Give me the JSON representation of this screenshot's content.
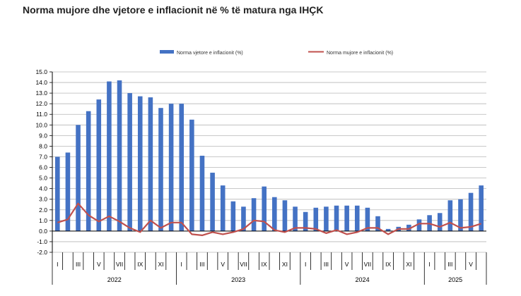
{
  "title": "Norma mujore dhe vjetore e inflacionit në % të matura nga IHÇK",
  "colors": {
    "bar": "#4472C4",
    "line": "#C0504D",
    "grid": "#b7b7b7",
    "axis": "#000000"
  },
  "chart_data": {
    "type": "bar+line",
    "title": "Norma mujore dhe vjetore e inflacionit në % të matura nga IHÇK",
    "ylim": [
      -2.0,
      15.0
    ],
    "yticks": [
      "15.0",
      "14.0",
      "13.0",
      "12.0",
      "11.0",
      "10.0",
      "9.0",
      "8.0",
      "7.0",
      "6.0",
      "5.0",
      "4.0",
      "3.0",
      "2.0",
      "1.0",
      "0.0",
      "-1.0",
      "-2.0"
    ],
    "grid": true,
    "legend_position": "top",
    "month_labels": [
      "I",
      "",
      "III",
      "",
      "V",
      "",
      "VII",
      "",
      "IX",
      "",
      "XI",
      "",
      "I",
      "",
      "III",
      "",
      "V",
      "",
      "VII",
      "",
      "IX",
      "",
      "XI",
      "",
      "I",
      "",
      "III",
      "",
      "V",
      "",
      "VII",
      "",
      "IX",
      "",
      "XI",
      "",
      "I",
      "",
      "III",
      "",
      "V",
      ""
    ],
    "years": [
      {
        "label": "2022",
        "start": 0,
        "count": 12
      },
      {
        "label": "2023",
        "start": 12,
        "count": 12
      },
      {
        "label": "2024",
        "start": 24,
        "count": 12
      },
      {
        "label": "2025",
        "start": 36,
        "count": 6
      }
    ],
    "series": [
      {
        "name": "Norma vjetore e inflacionit (%)",
        "kind": "bar",
        "values": [
          7.0,
          7.4,
          10.0,
          11.3,
          12.4,
          14.1,
          14.2,
          13.0,
          12.7,
          12.6,
          11.6,
          12.0,
          12.0,
          10.5,
          7.1,
          5.5,
          4.3,
          2.8,
          2.3,
          3.1,
          4.2,
          3.2,
          2.9,
          2.3,
          1.8,
          2.2,
          2.3,
          2.4,
          2.4,
          2.4,
          2.2,
          1.4,
          0.2,
          0.4,
          0.6,
          1.1,
          1.5,
          1.7,
          2.9,
          3.0,
          3.6,
          4.3
        ]
      },
      {
        "name": "Norma mujore e inflacionit (%)",
        "kind": "line",
        "values": [
          0.8,
          1.1,
          2.6,
          1.5,
          0.9,
          1.4,
          0.9,
          0.3,
          -0.1,
          1.0,
          0.3,
          0.8,
          0.8,
          -0.3,
          -0.4,
          -0.1,
          -0.3,
          -0.1,
          0.2,
          1.0,
          0.9,
          0.1,
          -0.1,
          0.3,
          0.3,
          0.2,
          -0.2,
          0.1,
          -0.3,
          -0.1,
          0.3,
          0.3,
          -0.3,
          0.2,
          0.2,
          0.7,
          0.7,
          0.4,
          0.8,
          0.3,
          0.4,
          0.7
        ]
      }
    ]
  }
}
